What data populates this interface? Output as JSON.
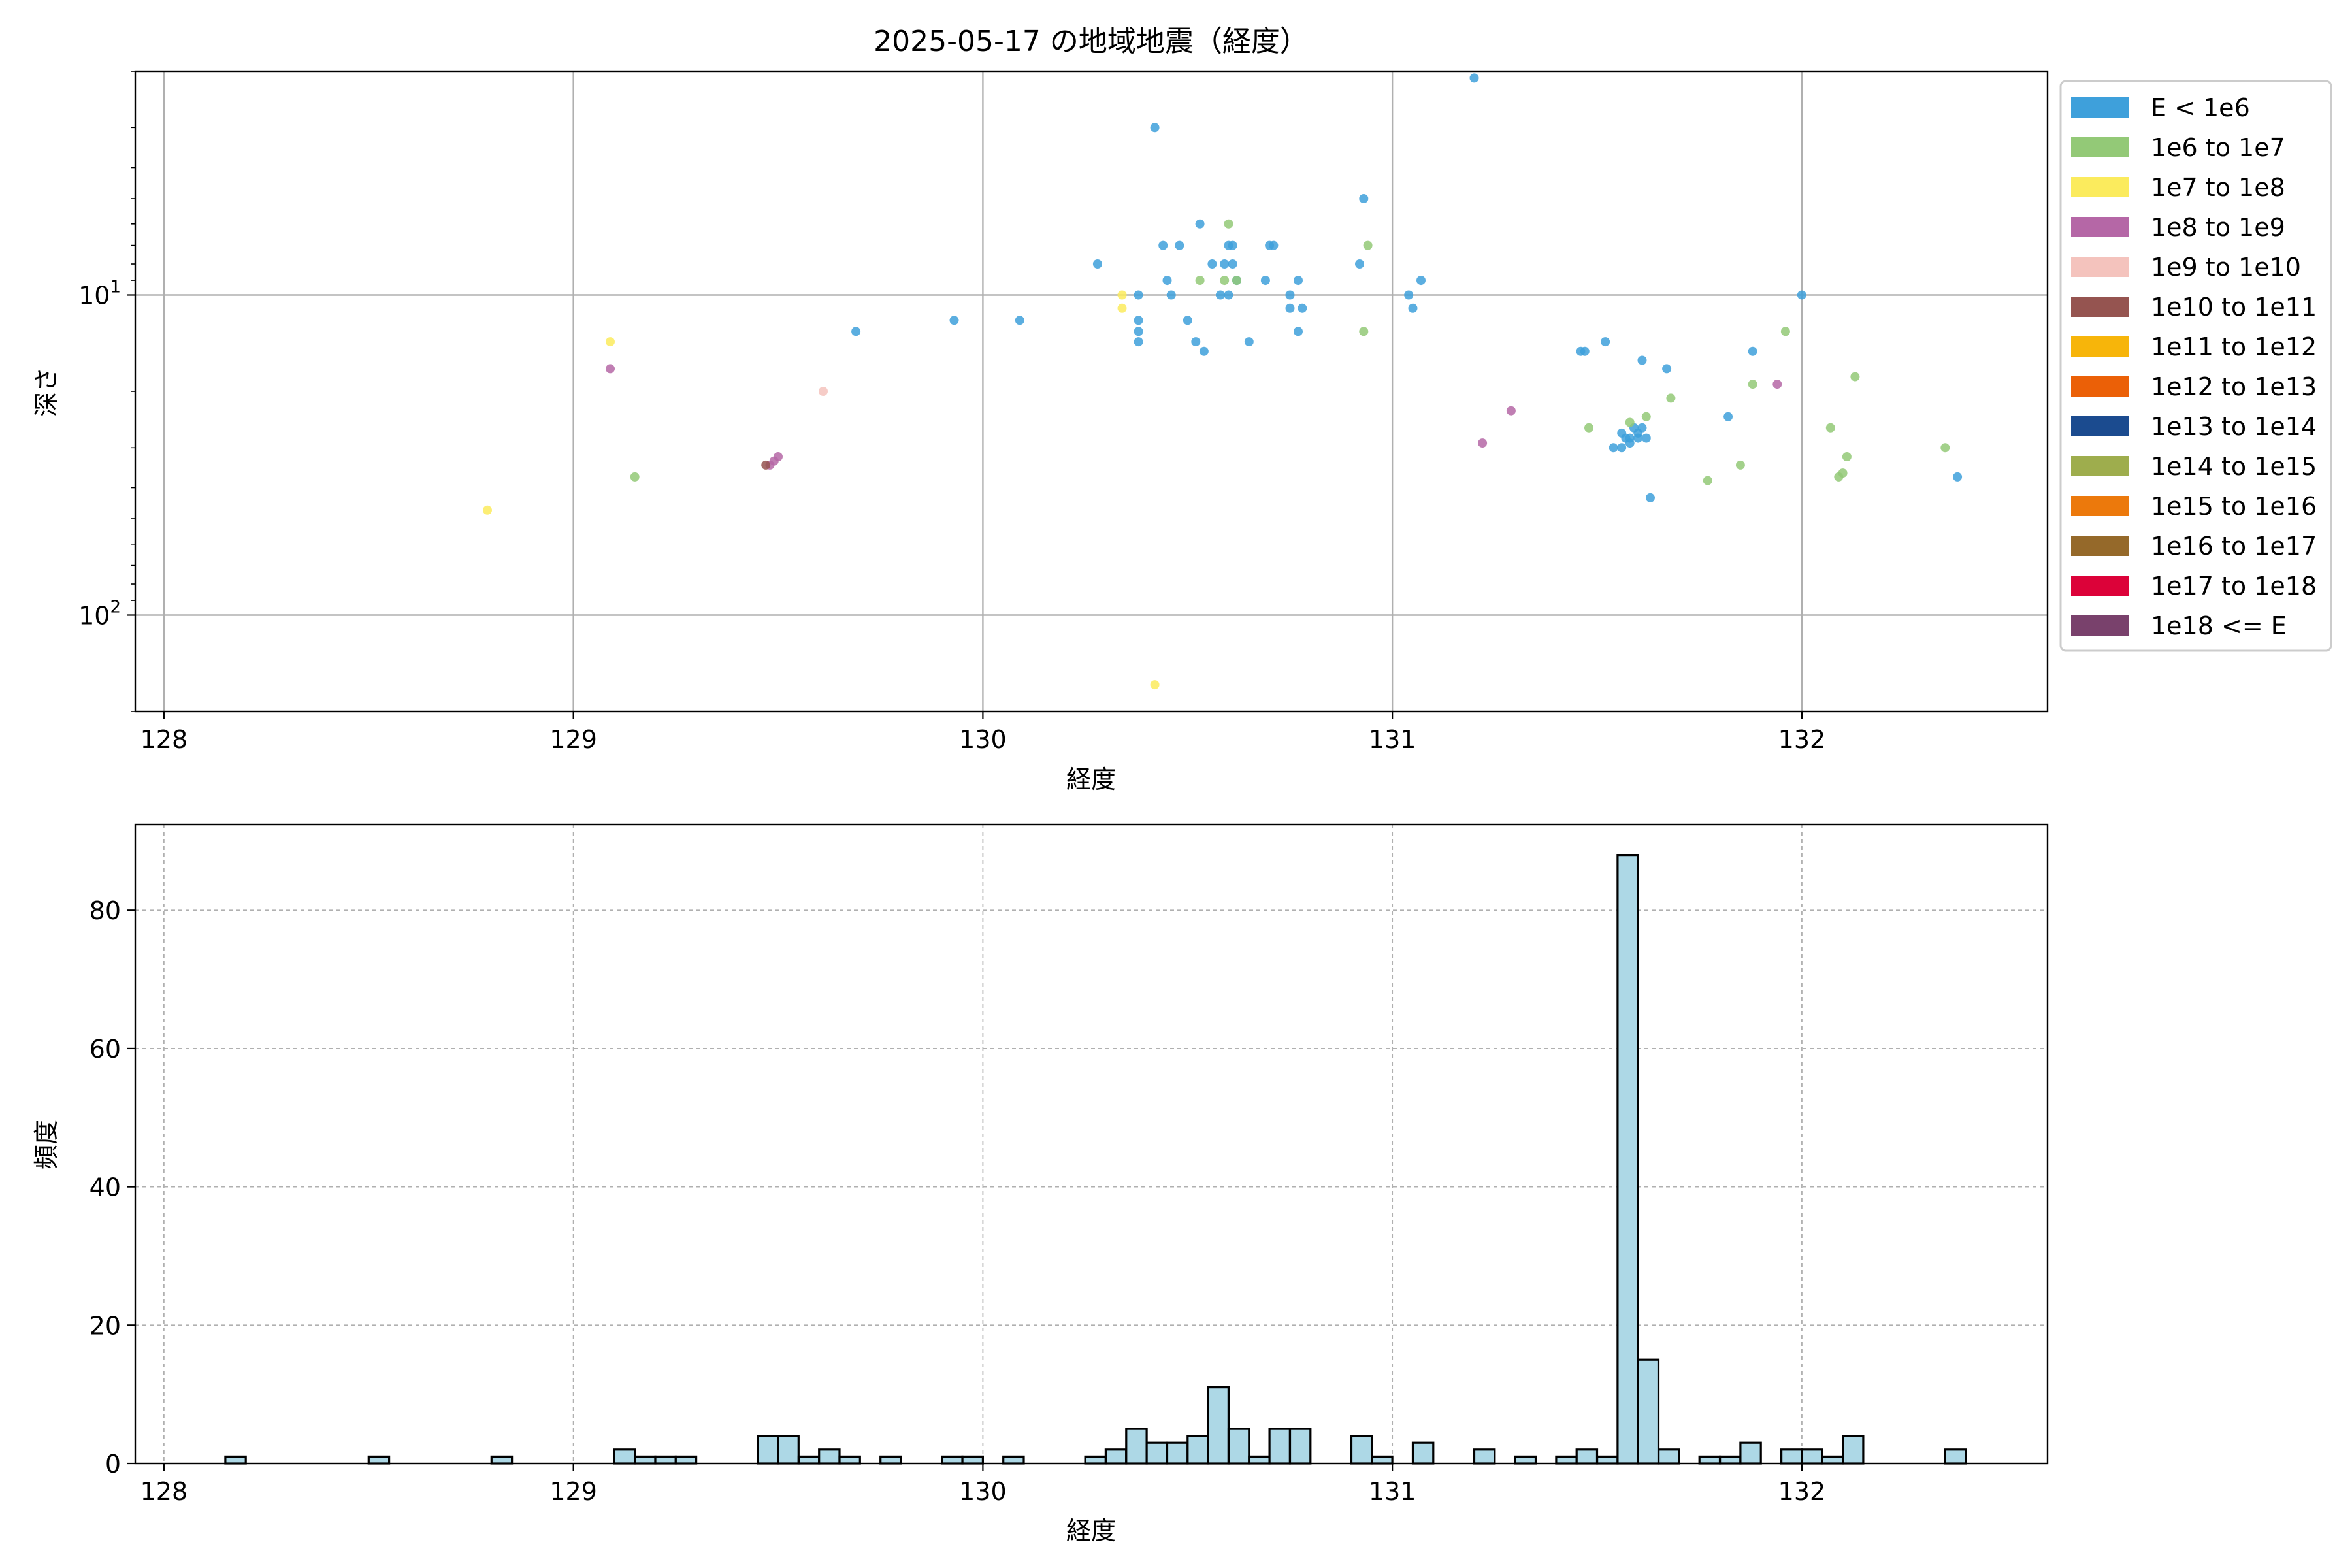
{
  "chart_data": [
    {
      "type": "scatter",
      "title": "2025-05-17 の地域地震（経度）",
      "xlabel": "経度",
      "ylabel": "深さ",
      "xlim": [
        127.93,
        132.6
      ],
      "ylim": [
        200,
        2
      ],
      "y_scale": "log-inverted",
      "x_ticks": [
        128,
        129,
        130,
        131,
        132
      ],
      "y_ticks": [
        {
          "value": 10,
          "base": "10",
          "exp": "1"
        },
        {
          "value": 100,
          "base": "10",
          "exp": "2"
        }
      ],
      "grid": true,
      "legend_position": "outside-right",
      "legend": [
        {
          "label": "E < 1e6",
          "color": "#3ea0db"
        },
        {
          "label": "1e6 to 1e7",
          "color": "#93c977"
        },
        {
          "label": "1e7 to 1e8",
          "color": "#fbeb5d"
        },
        {
          "label": "1e8 to 1e9",
          "color": "#b567a6"
        },
        {
          "label": "1e9 to 1e10",
          "color": "#f4c3bd"
        },
        {
          "label": "1e10 to 1e11",
          "color": "#955450"
        },
        {
          "label": "1e11 to 1e12",
          "color": "#f7b50a"
        },
        {
          "label": "1e12 to 1e13",
          "color": "#eb6007"
        },
        {
          "label": "1e13 to 1e14",
          "color": "#1b4b8f"
        },
        {
          "label": "1e14 to 1e15",
          "color": "#9ead4d"
        },
        {
          "label": "1e15 to 1e16",
          "color": "#ec790c"
        },
        {
          "label": "1e16 to 1e17",
          "color": "#95692a"
        },
        {
          "label": "1e17 to 1e18",
          "color": "#dc0239"
        },
        {
          "label": "1e18 <= E",
          "color": "#79416c"
        }
      ],
      "series": [
        {
          "color": "#3ea0db",
          "points": [
            [
              131.2,
              2.1
            ],
            [
              130.42,
              3.0
            ],
            [
              130.93,
              5.0
            ],
            [
              130.53,
              6.0
            ],
            [
              130.44,
              7.0
            ],
            [
              130.48,
              7.0
            ],
            [
              130.6,
              7.0
            ],
            [
              130.61,
              7.0
            ],
            [
              130.7,
              7.0
            ],
            [
              130.71,
              7.0
            ],
            [
              130.28,
              8.0
            ],
            [
              130.56,
              8.0
            ],
            [
              130.59,
              8.0
            ],
            [
              130.61,
              8.0
            ],
            [
              130.92,
              8.0
            ],
            [
              130.45,
              9.0
            ],
            [
              130.62,
              9.0
            ],
            [
              130.69,
              9.0
            ],
            [
              130.77,
              9.0
            ],
            [
              131.07,
              9.0
            ],
            [
              130.38,
              10.0
            ],
            [
              130.46,
              10.0
            ],
            [
              130.58,
              10.0
            ],
            [
              130.6,
              10.0
            ],
            [
              130.75,
              10.0
            ],
            [
              131.04,
              10.0
            ],
            [
              132.0,
              10.0
            ],
            [
              130.75,
              11.0
            ],
            [
              130.78,
              11.0
            ],
            [
              131.05,
              11.0
            ],
            [
              129.93,
              12.0
            ],
            [
              130.09,
              12.0
            ],
            [
              130.38,
              12.0
            ],
            [
              130.5,
              12.0
            ],
            [
              129.69,
              13.0
            ],
            [
              130.38,
              13.0
            ],
            [
              130.77,
              13.0
            ],
            [
              130.38,
              14.0
            ],
            [
              130.52,
              14.0
            ],
            [
              130.65,
              14.0
            ],
            [
              130.54,
              15.0
            ],
            [
              131.46,
              15.0
            ],
            [
              131.47,
              15.0
            ],
            [
              131.52,
              14.0
            ],
            [
              131.61,
              16.0
            ],
            [
              131.67,
              17.0
            ],
            [
              131.88,
              15.0
            ],
            [
              131.82,
              24.0
            ],
            [
              131.56,
              27.0
            ],
            [
              131.58,
              28.0
            ],
            [
              131.6,
              27.0
            ],
            [
              131.62,
              28.0
            ],
            [
              131.59,
              26.0
            ],
            [
              131.61,
              26.0
            ],
            [
              131.58,
              29.0
            ],
            [
              131.56,
              30.0
            ],
            [
              131.54,
              30.0
            ],
            [
              131.57,
              28.0
            ],
            [
              131.6,
              28.0
            ],
            [
              131.63,
              43.0
            ],
            [
              132.38,
              37.0
            ]
          ]
        },
        {
          "color": "#93c977",
          "points": [
            [
              130.6,
              6.0
            ],
            [
              130.94,
              7.0
            ],
            [
              130.53,
              9.0
            ],
            [
              130.59,
              9.0
            ],
            [
              130.62,
              9.0
            ],
            [
              130.93,
              13.0
            ],
            [
              131.96,
              13.0
            ],
            [
              131.68,
              21.0
            ],
            [
              131.88,
              19.0
            ],
            [
              132.13,
              18.0
            ],
            [
              131.48,
              26.0
            ],
            [
              132.07,
              26.0
            ],
            [
              131.58,
              25.0
            ],
            [
              131.62,
              24.0
            ],
            [
              132.11,
              32.0
            ],
            [
              132.1,
              36.0
            ],
            [
              132.09,
              37.0
            ],
            [
              131.85,
              34.0
            ],
            [
              131.77,
              38.0
            ],
            [
              132.35,
              30.0
            ],
            [
              129.15,
              37.0
            ]
          ]
        },
        {
          "color": "#fbeb5d",
          "points": [
            [
              130.34,
              10.0
            ],
            [
              130.34,
              11.0
            ],
            [
              129.09,
              14.0
            ],
            [
              128.79,
              47.0
            ],
            [
              130.42,
              165.0
            ]
          ]
        },
        {
          "color": "#b567a6",
          "points": [
            [
              129.09,
              17.0
            ],
            [
              131.94,
              19.0
            ],
            [
              131.29,
              23.0
            ],
            [
              131.22,
              29.0
            ],
            [
              129.5,
              32.0
            ],
            [
              129.49,
              33.0
            ],
            [
              129.48,
              34.0
            ]
          ]
        },
        {
          "color": "#f4c3bd",
          "points": [
            [
              129.61,
              20.0
            ]
          ]
        },
        {
          "color": "#955450",
          "points": [
            [
              129.47,
              34.0
            ]
          ]
        }
      ]
    },
    {
      "type": "bar",
      "xlabel": "経度",
      "ylabel": "頻度",
      "xlim": [
        127.93,
        132.6
      ],
      "ylim": [
        0,
        92.4
      ],
      "x_ticks": [
        128,
        129,
        130,
        131,
        132
      ],
      "y_ticks": [
        0,
        20,
        40,
        60,
        80
      ],
      "grid": true,
      "bin_width": 0.05,
      "bars": [
        [
          128.15,
          1
        ],
        [
          128.5,
          1
        ],
        [
          128.8,
          1
        ],
        [
          129.1,
          2
        ],
        [
          129.15,
          1
        ],
        [
          129.2,
          1
        ],
        [
          129.25,
          1
        ],
        [
          129.45,
          4
        ],
        [
          129.5,
          4
        ],
        [
          129.55,
          1
        ],
        [
          129.6,
          2
        ],
        [
          129.65,
          1
        ],
        [
          129.75,
          1
        ],
        [
          129.9,
          1
        ],
        [
          129.95,
          1
        ],
        [
          130.05,
          1
        ],
        [
          130.25,
          1
        ],
        [
          130.3,
          2
        ],
        [
          130.35,
          5
        ],
        [
          130.4,
          3
        ],
        [
          130.45,
          3
        ],
        [
          130.5,
          4
        ],
        [
          130.55,
          11
        ],
        [
          130.6,
          5
        ],
        [
          130.65,
          1
        ],
        [
          130.7,
          5
        ],
        [
          130.75,
          5
        ],
        [
          130.9,
          4
        ],
        [
          130.95,
          1
        ],
        [
          131.05,
          3
        ],
        [
          131.2,
          2
        ],
        [
          131.3,
          1
        ],
        [
          131.4,
          1
        ],
        [
          131.45,
          2
        ],
        [
          131.5,
          1
        ],
        [
          131.55,
          88
        ],
        [
          131.6,
          15
        ],
        [
          131.65,
          2
        ],
        [
          131.75,
          1
        ],
        [
          131.8,
          1
        ],
        [
          131.85,
          3
        ],
        [
          131.95,
          2
        ],
        [
          132.0,
          2
        ],
        [
          132.05,
          1
        ],
        [
          132.1,
          4
        ],
        [
          132.35,
          2
        ]
      ]
    }
  ]
}
